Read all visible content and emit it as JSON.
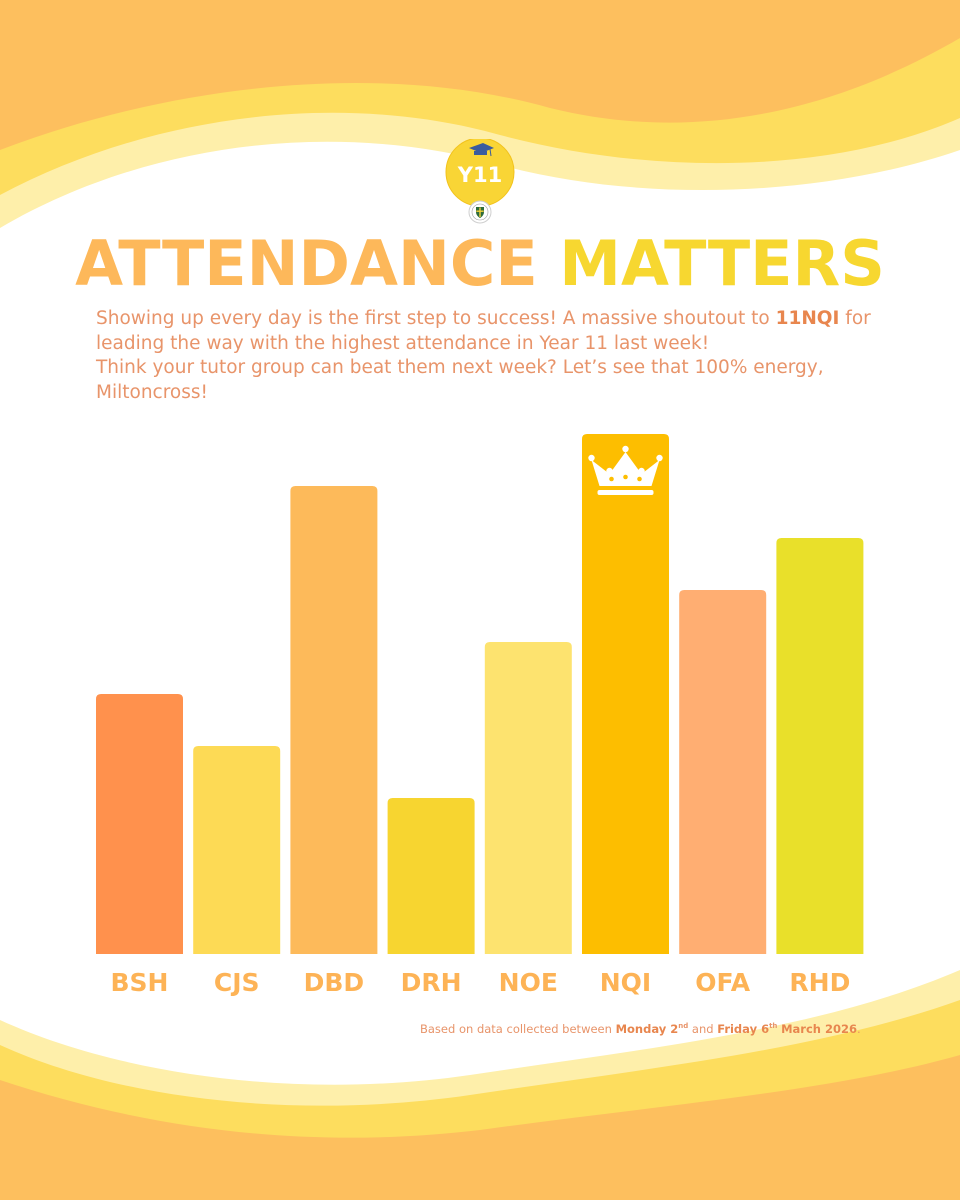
{
  "header": {
    "logo_badge": "Y11",
    "title_part1": "ATTENDANCE",
    "title_part2": "MATTERS"
  },
  "intro": {
    "text1": "Showing up every day is the first step to success! A massive shoutout to ",
    "highlight": "11NQI",
    "text2": " for leading the way with the highest attendance in Year 11 last week!",
    "line2": "Think your tutor group can beat them next week? Let’s see that 100% energy, Miltoncross!"
  },
  "chart_data": {
    "type": "bar",
    "title": "",
    "xlabel": "",
    "ylabel": "",
    "categories": [
      "BSH",
      "CJS",
      "DBD",
      "DRH",
      "NOE",
      "NQI",
      "OFA",
      "RHD"
    ],
    "values": [
      50,
      40,
      90,
      30,
      60,
      100,
      70,
      80
    ],
    "ylim": [
      0,
      100
    ],
    "grid": false,
    "highlight": "NQI",
    "colors": [
      "#FF914D",
      "#FDDA55",
      "#FDBA5A",
      "#F7D530",
      "#FDE36F",
      "#FDBE00",
      "#FFAE72",
      "#E9E02A"
    ],
    "label_color": "#FDB356"
  },
  "footer": {
    "note_prefix": "Based on data collected between ",
    "start_day": "Monday 2",
    "start_suffix": "nd",
    "note_mid": " and ",
    "end_day": "Friday 6",
    "end_suffix": "th",
    "end_month": "March 2026",
    "note_end": "."
  },
  "colors": {
    "wave_dark": "#FDBF5E",
    "wave_mid": "#FDDD5E",
    "wave_light": "#FEEFAA",
    "title_primary": "#FDB85A",
    "title_accent": "#F7D730",
    "body_text": "#E8946A"
  }
}
